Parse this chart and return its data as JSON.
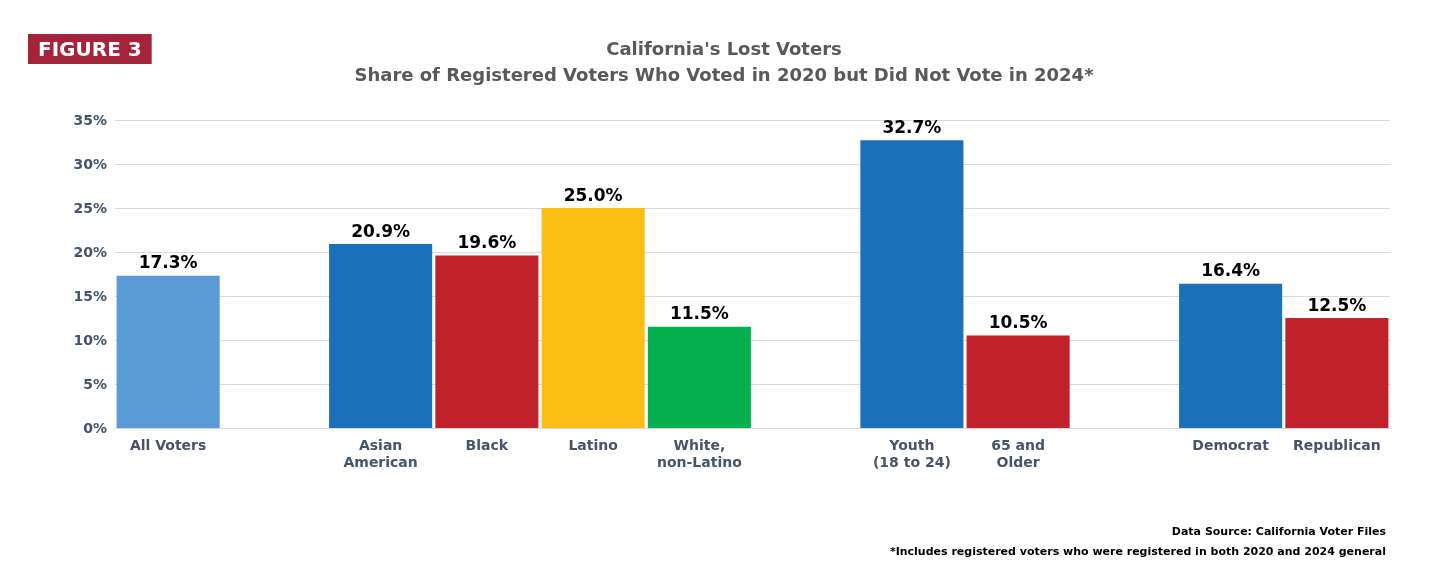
{
  "chart_data": {
    "type": "bar",
    "title": "California's Lost Voters",
    "subtitle": "Share of Registered Voters Who Voted in 2020 but Did Not Vote in 2024*",
    "categories": [
      "All Voters",
      null,
      "Asian\nAmerican",
      "Black",
      "Latino",
      "White,\nnon-Latino",
      null,
      "Youth\n(18 to 24)",
      "65 and\nOlder",
      null,
      "Democrat",
      "Republican"
    ],
    "values": [
      17.3,
      null,
      20.9,
      19.6,
      25.0,
      11.5,
      null,
      32.7,
      10.5,
      null,
      16.4,
      12.5
    ],
    "colors": [
      "#5b9bd5",
      null,
      "#1b70ba",
      "#c0212b",
      "#fbbf14",
      "#06b04e",
      null,
      "#1b70ba",
      "#c0212b",
      null,
      "#1b70ba",
      "#c0212b"
    ],
    "value_labels": [
      "17.3%",
      null,
      "20.9%",
      "19.6%",
      "25.0%",
      "11.5%",
      null,
      "32.7%",
      "10.5%",
      null,
      "16.4%",
      "12.5%"
    ],
    "ylim": [
      0,
      35
    ],
    "yticks": [
      {
        "value": 0,
        "label": "0%"
      },
      {
        "value": 5,
        "label": "5%"
      },
      {
        "value": 10,
        "label": "10%"
      },
      {
        "value": 15,
        "label": "15%"
      },
      {
        "value": 20,
        "label": "20%"
      },
      {
        "value": 25,
        "label": "25%"
      },
      {
        "value": 30,
        "label": "30%"
      },
      {
        "value": 35,
        "label": "35%"
      }
    ],
    "grid": "y",
    "annotations": [
      "FIGURE 3",
      "Data Source: California Voter Files",
      "*Includes registered voters who were registered in both 2020 and 2024 general"
    ]
  }
}
